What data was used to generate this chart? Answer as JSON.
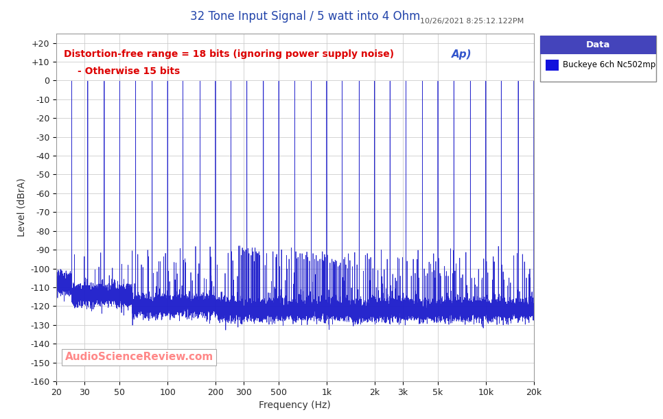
{
  "title": "32 Tone Input Signal / 5 watt into 4 Ohm",
  "timestamp": "10/26/2021 8:25:12.122PM",
  "xlabel": "Frequency (Hz)",
  "ylabel": "Level (dBrA)",
  "xlim_log": [
    20,
    20000
  ],
  "ylim": [
    -160,
    25
  ],
  "yticks": [
    20,
    10,
    0,
    -10,
    -20,
    -30,
    -40,
    -50,
    -60,
    -70,
    -80,
    -90,
    -100,
    -110,
    -120,
    -130,
    -140,
    -150,
    -160
  ],
  "ytick_labels": [
    "+20",
    "+10",
    "0",
    "-10",
    "-20",
    "-30",
    "-40",
    "-50",
    "-60",
    "-70",
    "-80",
    "-90",
    "-100",
    "-110",
    "-120",
    "-130",
    "-140",
    "-150",
    "-160"
  ],
  "xticks": [
    20,
    30,
    50,
    100,
    200,
    300,
    500,
    1000,
    2000,
    3000,
    5000,
    10000,
    20000
  ],
  "xtick_labels": [
    "20",
    "30",
    "50",
    "100",
    "200",
    "300",
    "500",
    "1k",
    "2k",
    "3k",
    "5k",
    "10k",
    "20k"
  ],
  "line_color": "#2222cc",
  "bg_color": "#ffffff",
  "grid_color": "#cccccc",
  "annotation_line1": "Distortion-free range = 18 bits (ignoring power supply noise)",
  "annotation_line2": "- Otherwise 15 bits",
  "annotation_color": "#dd0000",
  "watermark_text": "AudioScienceReview.com",
  "watermark_color": "#ff8888",
  "legend_label": "Buckeye 6ch Nc502mp",
  "legend_color": "#1111dd",
  "legend_header": "Data",
  "legend_header_bg": "#4444bb",
  "noise_floor": -120,
  "title_color": "#2244aa",
  "timestamp_color": "#555555",
  "ap_logo_color": "#3355cc"
}
